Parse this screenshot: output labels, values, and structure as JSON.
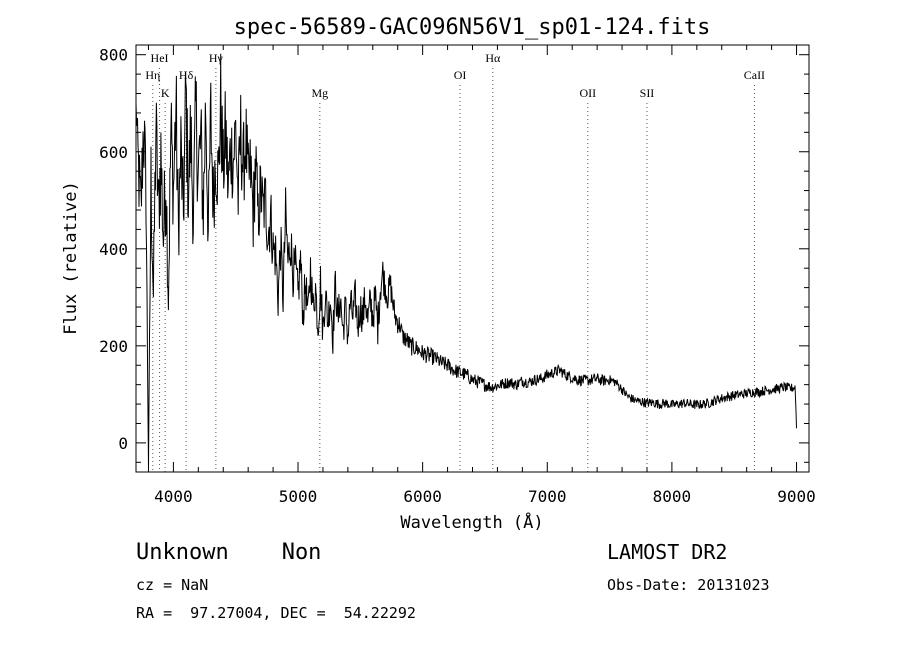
{
  "chart_data": {
    "type": "line",
    "title": "spec-56589-GAC096N56V1_sp01-124.fits",
    "xlabel": "Wavelength (Å)",
    "ylabel": "Flux (relative)",
    "xlim": [
      3700,
      9100
    ],
    "ylim": [
      -60,
      820
    ],
    "x_ticks": [
      4000,
      5000,
      6000,
      7000,
      8000,
      9000
    ],
    "y_ticks": [
      0,
      200,
      400,
      600,
      800
    ],
    "grid": false,
    "line_color": "#000000",
    "series": [
      {
        "x": [
          3700,
          3720,
          3740,
          3760,
          3780,
          3800,
          3820,
          3840,
          3860,
          3880,
          3900,
          3920,
          3940,
          3960,
          3980,
          4000,
          4020,
          4040,
          4060,
          4080,
          4100,
          4120,
          4140,
          4160,
          4180,
          4200,
          4220,
          4240,
          4260,
          4280,
          4300,
          4320,
          4340,
          4360,
          4380,
          4400,
          4420,
          4440,
          4460,
          4480,
          4500,
          4520,
          4540,
          4560,
          4580,
          4600,
          4620,
          4640,
          4660,
          4680,
          4700,
          4720,
          4740,
          4760,
          4780,
          4800,
          4820,
          4840,
          4860,
          4880,
          4900,
          4920,
          4940,
          4960,
          4980,
          5000,
          5020,
          5040,
          5060,
          5080,
          5100,
          5120,
          5140,
          5160,
          5180,
          5200,
          5220,
          5240,
          5260,
          5280,
          5300,
          5320,
          5340,
          5360,
          5380,
          5400,
          5420,
          5440,
          5460,
          5480,
          5500,
          5520,
          5540,
          5560,
          5580,
          5600,
          5620,
          5640,
          5660,
          5680,
          5700,
          5720,
          5740,
          5760,
          5780,
          5800,
          5820,
          5840,
          5860,
          5880,
          5900,
          5950,
          6000,
          6050,
          6100,
          6150,
          6200,
          6250,
          6300,
          6350,
          6400,
          6450,
          6500,
          6550,
          6600,
          6650,
          6700,
          6750,
          6800,
          6850,
          6900,
          6950,
          7000,
          7050,
          7100,
          7150,
          7200,
          7250,
          7300,
          7350,
          7400,
          7450,
          7500,
          7550,
          7600,
          7650,
          7700,
          7750,
          7800,
          7850,
          7900,
          7950,
          8000,
          8050,
          8100,
          8150,
          8200,
          8250,
          8300,
          8350,
          8400,
          8450,
          8500,
          8550,
          8600,
          8650,
          8700,
          8750,
          8800,
          8850,
          8900,
          8950,
          8990,
          9000
        ],
        "values": [
          700,
          560,
          480,
          660,
          520,
          -50,
          540,
          300,
          650,
          480,
          590,
          420,
          560,
          300,
          640,
          520,
          690,
          440,
          600,
          470,
          720,
          510,
          640,
          460,
          680,
          560,
          620,
          480,
          700,
          430,
          670,
          500,
          600,
          540,
          700,
          560,
          640,
          520,
          610,
          580,
          650,
          500,
          640,
          560,
          630,
          540,
          560,
          470,
          580,
          460,
          520,
          480,
          500,
          430,
          470,
          400,
          390,
          300,
          410,
          300,
          470,
          370,
          420,
          350,
          360,
          300,
          380,
          260,
          330,
          260,
          360,
          280,
          320,
          240,
          330,
          230,
          310,
          250,
          300,
          220,
          330,
          250,
          300,
          230,
          280,
          220,
          290,
          260,
          300,
          240,
          280,
          260,
          300,
          250,
          290,
          260,
          300,
          240,
          320,
          350,
          320,
          300,
          330,
          290,
          260,
          250,
          240,
          220,
          215,
          210,
          200,
          195,
          185,
          180,
          175,
          165,
          160,
          150,
          145,
          140,
          130,
          125,
          120,
          115,
          118,
          122,
          125,
          120,
          128,
          125,
          130,
          132,
          140,
          145,
          150,
          140,
          135,
          130,
          128,
          130,
          132,
          128,
          130,
          125,
          110,
          95,
          88,
          85,
          82,
          83,
          80,
          82,
          78,
          80,
          82,
          80,
          78,
          80,
          82,
          88,
          92,
          95,
          98,
          100,
          102,
          105,
          105,
          108,
          110,
          112,
          115,
          112,
          115,
          30
        ],
        "noise": [
          0,
          90,
          80,
          120,
          80,
          0,
          110,
          60,
          120,
          90,
          130,
          80,
          120,
          60,
          130,
          90,
          140,
          80,
          120,
          90,
          140,
          90,
          120,
          80,
          130,
          100,
          120,
          90,
          130,
          80,
          120,
          90,
          110,
          90,
          120,
          90,
          110,
          90,
          100,
          90,
          100,
          80,
          100,
          90,
          100,
          80,
          90,
          80,
          90,
          70,
          80,
          70,
          80,
          70,
          70,
          60,
          60,
          50,
          60,
          50,
          60,
          50,
          60,
          50,
          50,
          50,
          50,
          40,
          50,
          40,
          50,
          40,
          50,
          40,
          50,
          40,
          40,
          40,
          40,
          40,
          40,
          40,
          40,
          40,
          40,
          40,
          40,
          40,
          40,
          40,
          40,
          40,
          40,
          40,
          40,
          40,
          40,
          40,
          40,
          40,
          30,
          30,
          30,
          30,
          25,
          25,
          20,
          20,
          20,
          20,
          20,
          18,
          18,
          18,
          16,
          16,
          16,
          15,
          15,
          15,
          14,
          14,
          14,
          12,
          12,
          12,
          12,
          12,
          12,
          12,
          12,
          12,
          12,
          12,
          12,
          12,
          12,
          12,
          12,
          12,
          12,
          12,
          10,
          10,
          10,
          10,
          10,
          10,
          10,
          10,
          10,
          10,
          10,
          10,
          10,
          10,
          10,
          10,
          10,
          10,
          10,
          10,
          10,
          10,
          10,
          10,
          10,
          10,
          10,
          10,
          10,
          10,
          10,
          0
        ]
      }
    ],
    "line_markers": [
      {
        "label": "HeI",
        "x": 3889,
        "row": 0
      },
      {
        "label": "Hη",
        "x": 3835,
        "row": 1
      },
      {
        "label": "K",
        "x": 3934,
        "row": 2
      },
      {
        "label": "Hδ",
        "x": 4102,
        "row": 1
      },
      {
        "label": "Hγ",
        "x": 4341,
        "row": 0
      },
      {
        "label": "Mg",
        "x": 5175,
        "row": 2
      },
      {
        "label": "OI",
        "x": 6300,
        "row": 1
      },
      {
        "label": "Hα",
        "x": 6563,
        "row": 0
      },
      {
        "label": "OII",
        "x": 7325,
        "row": 2
      },
      {
        "label": "SII",
        "x": 7800,
        "row": 2
      },
      {
        "label": "CaII",
        "x": 8662,
        "row": 1
      }
    ]
  },
  "info": {
    "object": "Unknown    Non",
    "cz": "cz = NaN",
    "radec": "RA =  97.27004, DEC =  54.22292",
    "survey": "LAMOST DR2",
    "obs_date": "Obs-Date: 20131023"
  }
}
